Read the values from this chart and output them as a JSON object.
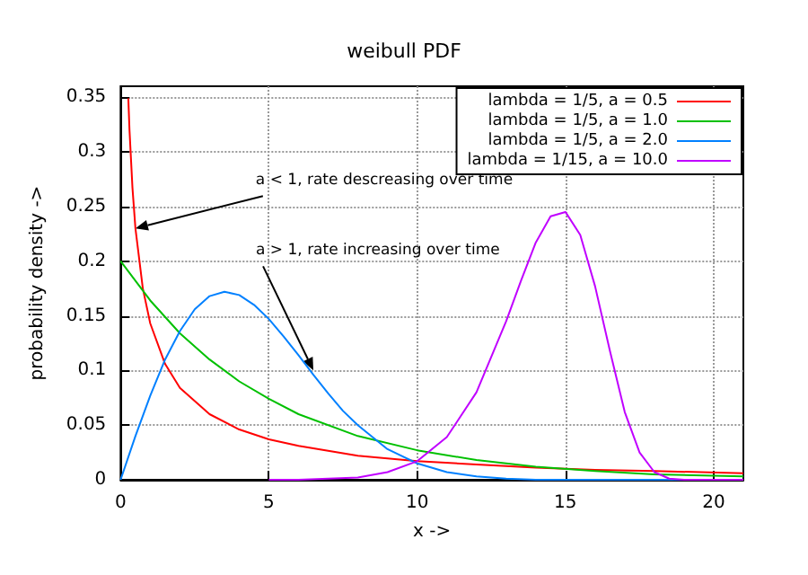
{
  "chart_data": {
    "type": "line",
    "title": "weibull PDF",
    "xlabel": "x ->",
    "ylabel": "probability density ->",
    "xlim": [
      0,
      21
    ],
    "xticks": [
      0,
      5,
      10,
      15,
      20
    ],
    "ylim": [
      0,
      0.36
    ],
    "yticks": [
      0,
      0.05,
      0.1,
      0.15,
      0.2,
      0.25,
      0.3,
      0.35
    ],
    "grid": true,
    "legend": "top right",
    "marker": "none",
    "line_style": "solid",
    "series": [
      {
        "name": "lambda = 1/5, a = 0.5",
        "color": "#ff0000",
        "x": [
          0.26,
          0.3,
          0.4,
          0.5,
          0.75,
          1,
          1.5,
          2,
          3,
          4,
          5,
          6,
          8,
          10,
          12,
          14,
          16,
          18,
          21
        ],
        "values": [
          0.349,
          0.32,
          0.267,
          0.23,
          0.175,
          0.143,
          0.106,
          0.084,
          0.06,
          0.046,
          0.037,
          0.031,
          0.022,
          0.017,
          0.014,
          0.011,
          0.009,
          0.008,
          0.006
        ]
      },
      {
        "name": "lambda = 1/5, a = 1.0",
        "color": "#00c000",
        "x": [
          0,
          1,
          2,
          3,
          4,
          5,
          6,
          8,
          10,
          12,
          14,
          16,
          18,
          21
        ],
        "values": [
          0.2,
          0.164,
          0.134,
          0.11,
          0.09,
          0.074,
          0.06,
          0.04,
          0.027,
          0.018,
          0.012,
          0.008,
          0.005,
          0.003
        ]
      },
      {
        "name": "lambda = 1/5, a = 2.0",
        "color": "#0080ff",
        "x": [
          0,
          0.5,
          1,
          1.5,
          2,
          2.5,
          3,
          3.5,
          4,
          4.5,
          5,
          5.5,
          6,
          6.5,
          7,
          7.5,
          8,
          9,
          10,
          11,
          12,
          13,
          14,
          16,
          21
        ],
        "values": [
          0,
          0.04,
          0.077,
          0.11,
          0.136,
          0.156,
          0.168,
          0.172,
          0.169,
          0.16,
          0.147,
          0.131,
          0.114,
          0.096,
          0.079,
          0.063,
          0.05,
          0.028,
          0.015,
          0.007,
          0.003,
          0.001,
          0,
          0,
          0
        ]
      },
      {
        "name": "lambda = 1/15, a = 10.0",
        "color": "#c000ff",
        "x": [
          5,
          6,
          7,
          8,
          9,
          10,
          11,
          12,
          13,
          13.5,
          14,
          14.5,
          15,
          15.5,
          16,
          16.5,
          17,
          17.5,
          18,
          18.5,
          19,
          20,
          21
        ],
        "values": [
          0,
          0,
          0.001,
          0.002,
          0.007,
          0.017,
          0.039,
          0.08,
          0.145,
          0.182,
          0.217,
          0.241,
          0.245,
          0.224,
          0.177,
          0.118,
          0.062,
          0.025,
          0.007,
          0.001,
          0,
          0,
          0
        ]
      }
    ],
    "annotations": [
      {
        "text": "a < 1, rate descreasing over time",
        "x": 0.5,
        "y": 0.23
      },
      {
        "text": "a > 1, rate increasing over time",
        "x": 6.5,
        "y": 0.1
      }
    ]
  }
}
